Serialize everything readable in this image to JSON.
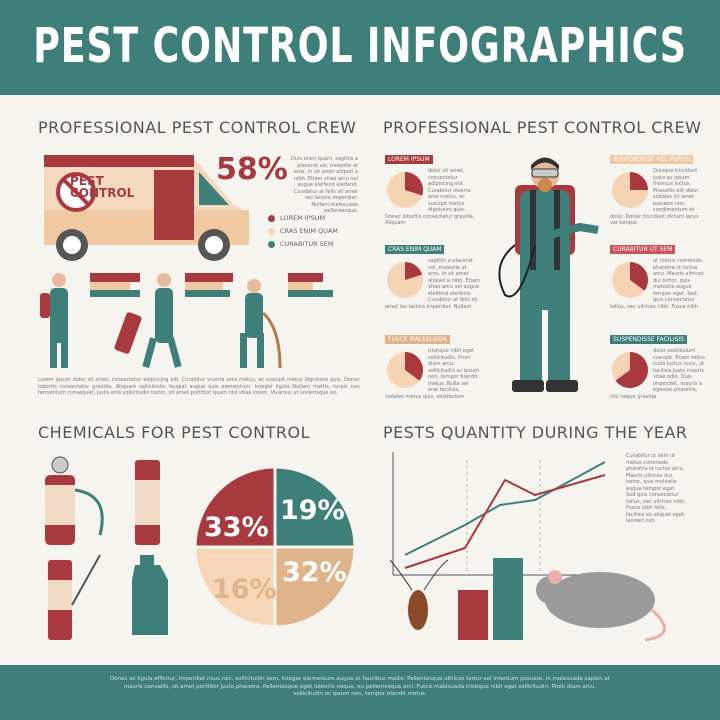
{
  "title": "PEST CONTROL INFOGRAPHICS",
  "sections": {
    "crew_left": "PROFESSIONAL PEST CONTROL CREW",
    "crew_right": "PROFESSIONAL PEST CONTROL CREW",
    "chemicals": "CHEMICALS FOR PEST CONTROL",
    "quantity": "PESTS QUANTITY DURING THE YEAR"
  },
  "van": {
    "logo_line1": "PEST",
    "logo_line2": "CONTROL"
  },
  "stat": {
    "value": "58%",
    "text": "Duis enim quam, sagittis a placerat vel, molestie at eros. In sit amet aliquet a nibh. Etiam vitae arcu vel augue eleifend eleifend. Curabitur at felis sit amet leo lacinia imperdiet. Nullam malesuada pellentesque."
  },
  "legend": [
    {
      "label": "LOREM IPSUM",
      "color": "#a83a3f"
    },
    {
      "label": "CRAS ENIM QUAM",
      "color": "#f5d3b3"
    },
    {
      "label": "CURABITUR SEM",
      "color": "#3f7f7a"
    }
  ],
  "crew_text": "Lorem ipsum dolor sit amet, consectetur adipiscing elit. Curabitur viverra eros metus, ac suscipit metus dignissim quis. Donec lobortis consectetur gravida. Aliquam sollicitudin feugiat augue quis elementum. Integer ligula Nullam mattis, turpis non fermentum consequat, justo eros sollicitudin tortor, sit amet porttitor quam nisl vitae lorem. Vivamus ut scelerisque ex.",
  "callouts": [
    {
      "label": "LOREM IPSUM",
      "color": "#a83a3f",
      "text": "dolor sit amet, consectetur adipiscing elit. Curabitur viverra eros metus, ac suscipit metus dignissim quis. Donec lobortis consectetur gravida. Aliquam",
      "share": 0.3
    },
    {
      "label": "CRAS ENIM QUAM",
      "color": "#3f7f7a",
      "text": "sagittis a placerat vel, molestie at eros. In sit amet aliquet a nibh. Etiam vitae arcu vel augue eleifend eleifend. Curabitur at felis sit amet leo lacinia imperdiet. Nullam",
      "share": 0.2
    },
    {
      "label": "FUSCE MALESUADA",
      "color": "#e0b48b",
      "text": "tristique nibh eget sollicitudin. Proin diam arcu, sollicitudin ac ipsum non, tempor blandit metus. Nulla vel erat facilisis, sodales metus quis, vestibulum",
      "share": 0.35
    },
    {
      "label": "SUSPENDISSE VEL PURUS",
      "color": "#f0c9a3",
      "text": "Quisque tincidunt justo ac ipsum rhoncus luctus. Phasellis elit dolor, sodales sit amet posuere non, condimentum et dolor. Donec tincidunt dictum lacus vel tempor.",
      "share": 0.25
    },
    {
      "label": "CURABITUR UT SEM",
      "color": "#c9555a",
      "text": "ut metus commodo pharetra id luctus arcu. Mauris ultrices dui tortor, quis molestie augue tempor eget. Sed quis consectetur tellus, nec ultrices nibh. Fusce nibh",
      "share": 0.35
    },
    {
      "label": "SUSPENDISSE FACILISIS",
      "color": "#3f7f7a",
      "text": "dolor vestibulum suscipit. Etiam tellus nulla luctus nunc, ut facilisis justo mauris vitae odio. Duis imperdiet, mauris a egestas pharetra, nisi neque gravida",
      "share": 0.65
    }
  ],
  "chemicals_pie": [
    {
      "label": "33%",
      "value": 33,
      "color": "#a83a3f"
    },
    {
      "label": "19%",
      "value": 19,
      "color": "#3f7f7a"
    },
    {
      "label": "32%",
      "value": 32,
      "color": "#e0b48b"
    },
    {
      "label": "16%",
      "value": 16,
      "color": "#f7d6b8"
    }
  ],
  "quantity_text": "Curabitur ut sem ut metus commodo pharetra id luctus arcu. Mauris ultrices dui tortor, quis molestie augue tempor eget. Sed quis consectetur tellus, nec ultrices nibh. Fusce nibh felis, facilisis eu aliquet eget, laoreet non.",
  "colors": {
    "teal": "#3f7f7a",
    "red": "#a83a3f",
    "tan": "#e0b48b",
    "peach": "#f7d6b8",
    "background": "#f6f4ef"
  },
  "footer": "Donec ac ligula efficitur, imperdiet risus nec, sollicitudin sem. Integer elementum augue et faucibus mollis. Pellentesque ultrices tortor vel interdum posuere. In malesuada sapien at mauris convallis, sit amet porttitor justo pharetra. Pellentesque eget lobortis neque, eu pellentesque orci. Fusce malesuada tristique nibh eget sollicitudin. Proin diam arcu, sollicitudin ac ipsum non, tempor blandit metus."
}
